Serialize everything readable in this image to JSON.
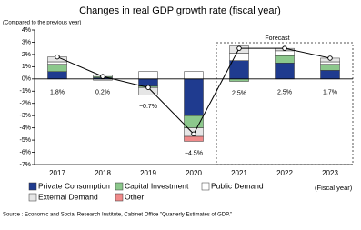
{
  "chart_data": {
    "type": "bar",
    "stacked": true,
    "title": "Changes in real GDP growth rate (fiscal year)",
    "y_axis_note": "(Compared to the previous year)",
    "x_axis_label": "(Fiscal year)",
    "annotation": "Forecast",
    "source": "Source : Economic and Social Research Institute, Cabinet Office \"Quarterly Estimates of GDP.\"",
    "categories": [
      "2017",
      "2018",
      "2019",
      "2020",
      "2021",
      "2022",
      "2023"
    ],
    "series": [
      {
        "name": "Private Consumption",
        "color": "#1f3b8f",
        "values": [
          0.6,
          0.1,
          -0.6,
          -3.0,
          1.5,
          1.3,
          0.7
        ]
      },
      {
        "name": "Capital Investment",
        "color": "#8cc88c",
        "values": [
          0.6,
          0.1,
          -0.1,
          -1.0,
          -0.2,
          0.6,
          0.5
        ]
      },
      {
        "name": "Public Demand",
        "color": "#ffffff",
        "values": [
          0.2,
          0.1,
          0.6,
          0.6,
          0.6,
          0.4,
          0.2
        ]
      },
      {
        "name": "External Demand",
        "color": "#e6e6e6",
        "values": [
          0.4,
          -0.1,
          -0.6,
          -0.7,
          0.6,
          0.2,
          0.3
        ]
      },
      {
        "name": "Other",
        "color": "#f08a8a",
        "values": [
          0.0,
          0.0,
          0.0,
          -0.4,
          0.0,
          0.0,
          0.0
        ]
      }
    ],
    "line": {
      "color": "#000000",
      "values": [
        1.8,
        0.2,
        -0.7,
        -4.5,
        2.5,
        2.5,
        1.7
      ],
      "value_labels": [
        "1.8%",
        "0.2%",
        "−0.7%",
        "−4.5%",
        "2.5%",
        "2.5%",
        "1.7%"
      ]
    },
    "ylim": [
      -7,
      4
    ],
    "yticks": [
      {
        "value": -7,
        "label": "-7%"
      },
      {
        "value": -6,
        "label": "-6%"
      },
      {
        "value": -5,
        "label": "-5%"
      },
      {
        "value": -4,
        "label": "-4%"
      },
      {
        "value": -3,
        "label": "-3%"
      },
      {
        "value": -2,
        "label": "-2%"
      },
      {
        "value": -1,
        "label": "-1%"
      },
      {
        "value": 0,
        "label": "0%"
      },
      {
        "value": 1,
        "label": "1%"
      },
      {
        "value": 2,
        "label": "2%"
      },
      {
        "value": 3,
        "label": "3%"
      },
      {
        "value": 4,
        "label": "4%"
      }
    ]
  }
}
